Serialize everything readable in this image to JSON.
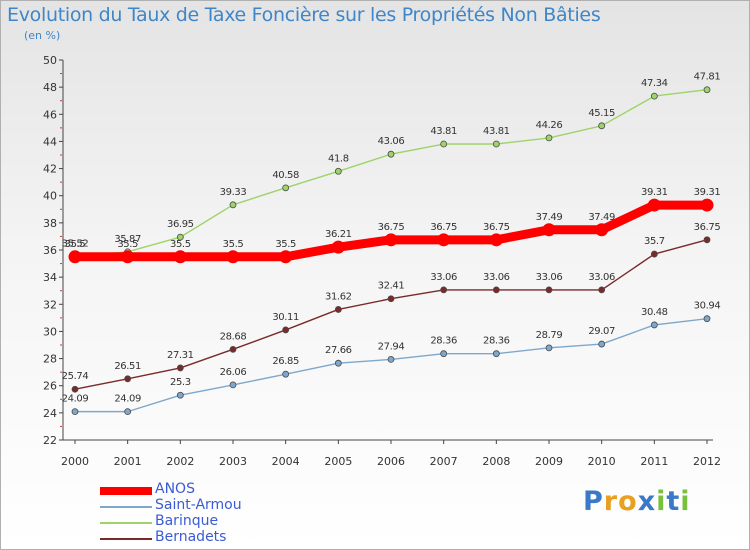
{
  "chart_data": {
    "type": "line",
    "title": "Evolution du Taux de Taxe Foncière sur les Propriétés Non Bâties",
    "subtitle": "(en %)",
    "categories": [
      "2000",
      "2001",
      "2002",
      "2003",
      "2004",
      "2005",
      "2006",
      "2007",
      "2008",
      "2009",
      "2010",
      "2011",
      "2012"
    ],
    "ylim": [
      22,
      50
    ],
    "yticks": [
      22,
      24,
      26,
      28,
      30,
      32,
      34,
      36,
      38,
      40,
      42,
      44,
      46,
      48,
      50
    ],
    "grid": false,
    "legend_position": "bottom-left",
    "series": [
      {
        "name": "ANOS",
        "color": "#ff0000",
        "values": [
          35.5,
          35.5,
          35.5,
          35.5,
          35.5,
          36.21,
          36.75,
          36.75,
          36.75,
          37.49,
          37.49,
          39.31,
          39.31
        ],
        "labels": [
          "35.5",
          "35.5",
          "35.5",
          "35.5",
          "35.5",
          "36.21",
          "36.75",
          "36.75",
          "36.75",
          "37.49",
          "37.49",
          "39.31",
          "39.31"
        ]
      },
      {
        "name": "Saint-Armou",
        "color": "#7fa7cc",
        "values": [
          24.09,
          24.09,
          25.3,
          26.06,
          26.85,
          27.66,
          27.94,
          28.36,
          28.36,
          28.79,
          29.07,
          30.48,
          30.94
        ],
        "labels": [
          "24.09",
          "24.09",
          "25.3",
          "26.06",
          "26.85",
          "27.66",
          "27.94",
          "28.36",
          "28.36",
          "28.79",
          "29.07",
          "30.48",
          "30.94"
        ]
      },
      {
        "name": "Barinque",
        "color": "#9ed36a",
        "values": [
          35.52,
          35.87,
          36.95,
          39.33,
          40.58,
          41.8,
          43.06,
          43.81,
          43.81,
          44.26,
          45.15,
          47.34,
          47.81
        ],
        "labels": [
          "35.52",
          "35.87",
          "36.95",
          "39.33",
          "40.58",
          "41.8",
          "43.06",
          "43.81",
          "43.81",
          "44.26",
          "45.15",
          "47.34",
          "47.81"
        ]
      },
      {
        "name": "Bernadets",
        "color": "#7a2a2a",
        "values": [
          25.74,
          26.51,
          27.31,
          28.68,
          30.11,
          31.62,
          32.41,
          33.06,
          33.06,
          33.06,
          33.06,
          35.7,
          36.75
        ],
        "labels": [
          "25.74",
          "26.51",
          "27.31",
          "28.68",
          "30.11",
          "31.62",
          "32.41",
          "33.06",
          "33.06",
          "33.06",
          "33.06",
          "35.7",
          "36.75"
        ]
      }
    ]
  },
  "legend": {
    "items": [
      {
        "label": "ANOS",
        "color": "#ff0000"
      },
      {
        "label": "Saint-Armou",
        "color": "#7fa7cc"
      },
      {
        "label": "Barinque",
        "color": "#9ed36a"
      },
      {
        "label": "Bernadets",
        "color": "#7a2a2a"
      }
    ]
  },
  "logo": {
    "text": "Proxiti",
    "letters": [
      "P",
      "r",
      "o",
      "x",
      "i",
      "t",
      "i"
    ],
    "colors": [
      "#3a78c8",
      "#e8a020",
      "#e8a020",
      "#3a78c8",
      "#7ac040",
      "#3a78c8",
      "#7ac040"
    ]
  }
}
